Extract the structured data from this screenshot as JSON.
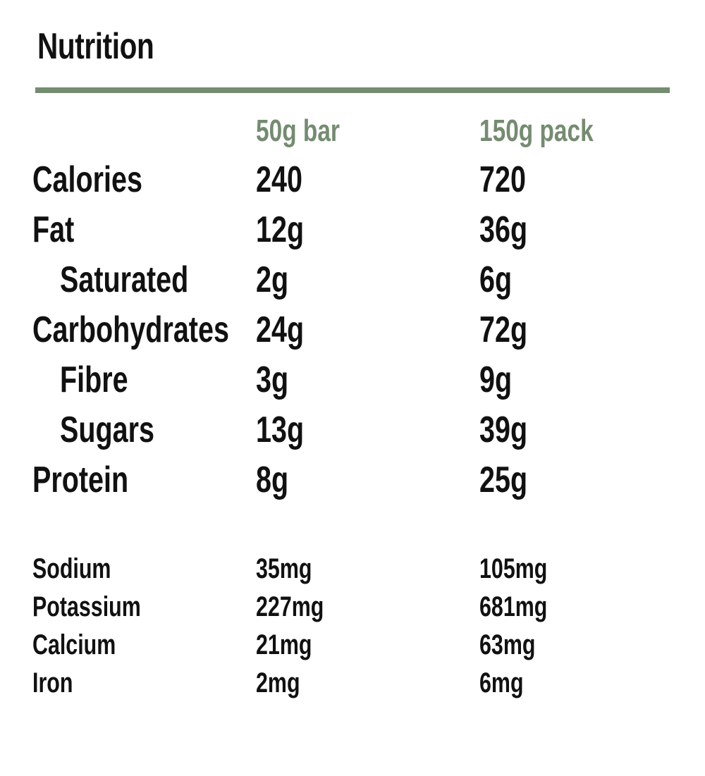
{
  "title": "Nutrition",
  "columns": [
    "50g bar",
    "150g pack"
  ],
  "main_rows": [
    {
      "label": "Calories",
      "bar": "240",
      "pack": "720",
      "indent": false
    },
    {
      "label": "Fat",
      "bar": "12g",
      "pack": "36g",
      "indent": false
    },
    {
      "label": "Saturated",
      "bar": "2g",
      "pack": "6g",
      "indent": true
    },
    {
      "label": "Carbohydrates",
      "bar": "24g",
      "pack": "72g",
      "indent": false
    },
    {
      "label": "Fibre",
      "bar": "3g",
      "pack": "9g",
      "indent": true
    },
    {
      "label": "Sugars",
      "bar": "13g",
      "pack": "39g",
      "indent": true
    },
    {
      "label": "Protein",
      "bar": "8g",
      "pack": "25g",
      "indent": false
    }
  ],
  "minor_rows": [
    {
      "label": "Sodium",
      "bar": "35mg",
      "pack": "105mg"
    },
    {
      "label": "Potassium",
      "bar": "227mg",
      "pack": "681mg"
    },
    {
      "label": "Calcium",
      "bar": "21mg",
      "pack": "63mg"
    },
    {
      "label": "Iron",
      "bar": "2mg",
      "pack": "6mg"
    }
  ],
  "colors": {
    "accent": "#748c70",
    "text": "#111111",
    "background": "#ffffff"
  }
}
